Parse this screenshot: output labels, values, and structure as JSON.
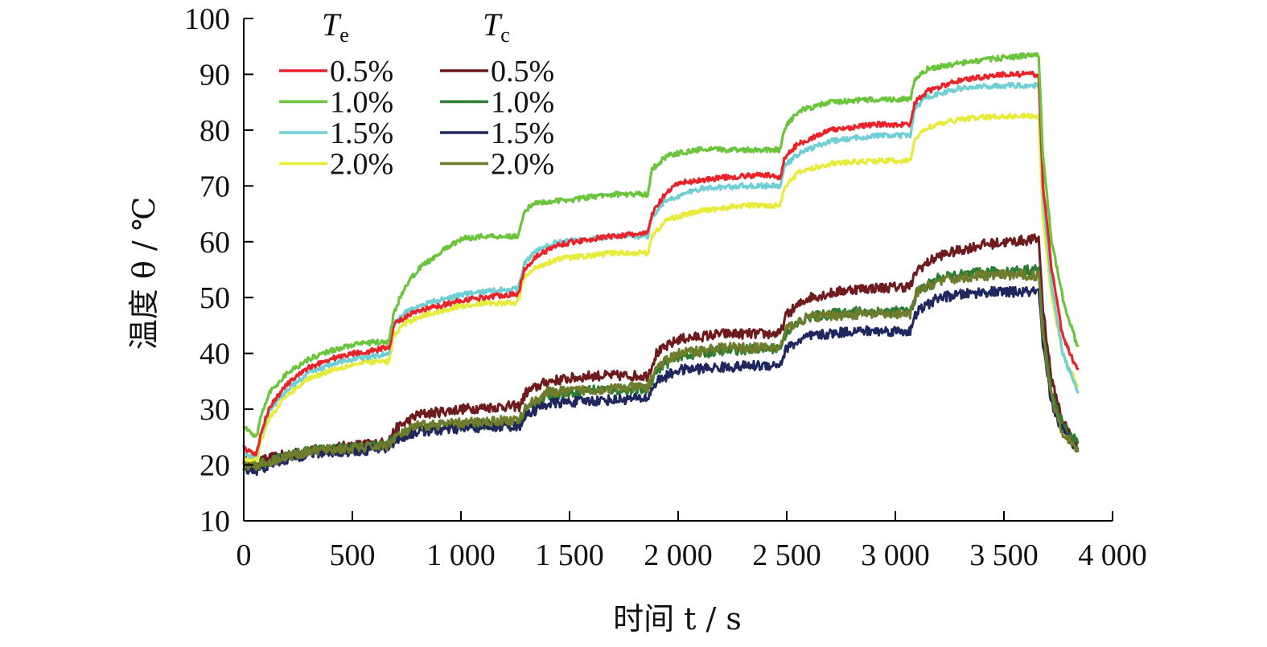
{
  "chart_data": {
    "type": "line",
    "xlabel": "时间 t / s",
    "ylabel": "温度 θ / ℃",
    "xlim": [
      0,
      4000
    ],
    "ylim": [
      10,
      100
    ],
    "x_ticks": [
      0,
      500,
      1000,
      1500,
      2000,
      2500,
      3000,
      3500,
      4000
    ],
    "x_tick_labels": [
      "0",
      "500",
      "1 000",
      "1 500",
      "2 000",
      "2 500",
      "3 000",
      "3 500",
      "4 000"
    ],
    "y_ticks": [
      10,
      20,
      30,
      40,
      50,
      60,
      70,
      80,
      90,
      100
    ],
    "y_tick_labels": [
      "10",
      "20",
      "30",
      "40",
      "50",
      "60",
      "70",
      "80",
      "90",
      "100"
    ],
    "grid": false,
    "legend": {
      "placement": "top-left",
      "groups": [
        {
          "head": "T",
          "sub": "e"
        },
        {
          "head": "T",
          "sub": "c"
        }
      ]
    },
    "series": [
      {
        "name": "0.5%",
        "group": "Te",
        "color": "#e8242a",
        "points": [
          [
            0,
            23
          ],
          [
            30,
            22.5
          ],
          [
            60,
            22
          ],
          [
            80,
            26
          ],
          [
            120,
            30.5
          ],
          [
            200,
            34.5
          ],
          [
            300,
            37.5
          ],
          [
            400,
            39
          ],
          [
            500,
            40
          ],
          [
            600,
            40.5
          ],
          [
            650,
            41
          ],
          [
            670,
            41
          ],
          [
            690,
            45
          ],
          [
            720,
            46
          ],
          [
            800,
            47.5
          ],
          [
            900,
            48.5
          ],
          [
            1000,
            49.5
          ],
          [
            1100,
            50
          ],
          [
            1200,
            50.5
          ],
          [
            1260,
            50.5
          ],
          [
            1270,
            51.5
          ],
          [
            1290,
            55
          ],
          [
            1350,
            57.5
          ],
          [
            1450,
            59.5
          ],
          [
            1600,
            60.5
          ],
          [
            1700,
            61
          ],
          [
            1860,
            61.5
          ],
          [
            1880,
            65
          ],
          [
            1930,
            68
          ],
          [
            2000,
            70.5
          ],
          [
            2200,
            71.5
          ],
          [
            2400,
            72
          ],
          [
            2470,
            71.5
          ],
          [
            2490,
            75
          ],
          [
            2550,
            77.5
          ],
          [
            2700,
            80
          ],
          [
            2900,
            81
          ],
          [
            3070,
            81
          ],
          [
            3090,
            85
          ],
          [
            3150,
            87
          ],
          [
            3300,
            89
          ],
          [
            3500,
            90
          ],
          [
            3660,
            90
          ],
          [
            3680,
            70
          ],
          [
            3720,
            55
          ],
          [
            3770,
            43
          ],
          [
            3840,
            37
          ]
        ]
      },
      {
        "name": "1.0%",
        "group": "Te",
        "color": "#6ac43c",
        "points": [
          [
            0,
            27
          ],
          [
            30,
            26
          ],
          [
            60,
            25
          ],
          [
            80,
            29
          ],
          [
            120,
            33
          ],
          [
            200,
            36.5
          ],
          [
            300,
            39
          ],
          [
            400,
            40.5
          ],
          [
            500,
            41.5
          ],
          [
            600,
            42
          ],
          [
            670,
            42
          ],
          [
            690,
            47
          ],
          [
            730,
            51
          ],
          [
            800,
            55
          ],
          [
            900,
            58
          ],
          [
            1000,
            60.5
          ],
          [
            1100,
            61
          ],
          [
            1200,
            61
          ],
          [
            1260,
            61
          ],
          [
            1270,
            62
          ],
          [
            1290,
            65.5
          ],
          [
            1350,
            67
          ],
          [
            1500,
            67.5
          ],
          [
            1700,
            68.5
          ],
          [
            1860,
            68.5
          ],
          [
            1880,
            73
          ],
          [
            1950,
            75.5
          ],
          [
            2100,
            76.5
          ],
          [
            2300,
            76.5
          ],
          [
            2470,
            76.5
          ],
          [
            2490,
            80.5
          ],
          [
            2560,
            83.5
          ],
          [
            2700,
            85
          ],
          [
            2900,
            85.5
          ],
          [
            3070,
            85.5
          ],
          [
            3090,
            89
          ],
          [
            3150,
            91
          ],
          [
            3300,
            92
          ],
          [
            3500,
            93
          ],
          [
            3660,
            93.5
          ],
          [
            3680,
            75
          ],
          [
            3720,
            60
          ],
          [
            3770,
            50
          ],
          [
            3840,
            41
          ]
        ]
      },
      {
        "name": "1.5%",
        "group": "Te",
        "color": "#6fcfd3",
        "points": [
          [
            0,
            22
          ],
          [
            30,
            21.5
          ],
          [
            60,
            21.5
          ],
          [
            80,
            25.5
          ],
          [
            120,
            30
          ],
          [
            200,
            33.5
          ],
          [
            300,
            36.5
          ],
          [
            400,
            38
          ],
          [
            500,
            39
          ],
          [
            600,
            39.5
          ],
          [
            670,
            40
          ],
          [
            690,
            45
          ],
          [
            730,
            47
          ],
          [
            800,
            48.5
          ],
          [
            900,
            49.5
          ],
          [
            1000,
            50.5
          ],
          [
            1100,
            51
          ],
          [
            1200,
            51.5
          ],
          [
            1260,
            51.5
          ],
          [
            1270,
            53
          ],
          [
            1290,
            56
          ],
          [
            1350,
            58.5
          ],
          [
            1450,
            60
          ],
          [
            1600,
            60.5
          ],
          [
            1700,
            61
          ],
          [
            1860,
            61
          ],
          [
            1880,
            64.5
          ],
          [
            1950,
            67.5
          ],
          [
            2100,
            69.5
          ],
          [
            2300,
            70
          ],
          [
            2470,
            70
          ],
          [
            2490,
            73.5
          ],
          [
            2560,
            76
          ],
          [
            2700,
            78
          ],
          [
            2900,
            79
          ],
          [
            3070,
            79
          ],
          [
            3090,
            84
          ],
          [
            3150,
            86
          ],
          [
            3300,
            87.5
          ],
          [
            3500,
            88
          ],
          [
            3660,
            88
          ],
          [
            3680,
            68
          ],
          [
            3720,
            52
          ],
          [
            3770,
            40
          ],
          [
            3840,
            33
          ]
        ]
      },
      {
        "name": "2.0%",
        "group": "Te",
        "color": "#e7eb3a",
        "points": [
          [
            0,
            21
          ],
          [
            30,
            21
          ],
          [
            60,
            21
          ],
          [
            80,
            24.5
          ],
          [
            120,
            28.5
          ],
          [
            200,
            32.5
          ],
          [
            300,
            35.5
          ],
          [
            400,
            37
          ],
          [
            500,
            38
          ],
          [
            600,
            38.5
          ],
          [
            670,
            38.5
          ],
          [
            690,
            43
          ],
          [
            730,
            45
          ],
          [
            800,
            46.5
          ],
          [
            900,
            47.5
          ],
          [
            1000,
            48.5
          ],
          [
            1100,
            49
          ],
          [
            1200,
            49
          ],
          [
            1260,
            49
          ],
          [
            1270,
            50.5
          ],
          [
            1290,
            53.5
          ],
          [
            1350,
            55.5
          ],
          [
            1450,
            57
          ],
          [
            1600,
            57.5
          ],
          [
            1700,
            58
          ],
          [
            1860,
            58
          ],
          [
            1880,
            61
          ],
          [
            1950,
            64
          ],
          [
            2100,
            65.5
          ],
          [
            2300,
            66.5
          ],
          [
            2470,
            66.5
          ],
          [
            2490,
            70
          ],
          [
            2560,
            72.5
          ],
          [
            2700,
            74
          ],
          [
            2900,
            74.5
          ],
          [
            3070,
            74.5
          ],
          [
            3090,
            78.5
          ],
          [
            3150,
            80.5
          ],
          [
            3300,
            82
          ],
          [
            3500,
            82.5
          ],
          [
            3660,
            82.5
          ],
          [
            3680,
            64
          ],
          [
            3720,
            50
          ],
          [
            3770,
            40
          ],
          [
            3840,
            34
          ]
        ]
      },
      {
        "name": "0.5%",
        "group": "Tc",
        "color": "#6e1b1e",
        "points": [
          [
            0,
            21
          ],
          [
            60,
            20.5
          ],
          [
            150,
            21.5
          ],
          [
            300,
            22.5
          ],
          [
            500,
            23.5
          ],
          [
            660,
            24
          ],
          [
            700,
            26.5
          ],
          [
            800,
            29
          ],
          [
            1000,
            30
          ],
          [
            1200,
            30.5
          ],
          [
            1270,
            30.5
          ],
          [
            1300,
            33
          ],
          [
            1400,
            35
          ],
          [
            1600,
            36
          ],
          [
            1860,
            36
          ],
          [
            1900,
            40
          ],
          [
            2000,
            42.5
          ],
          [
            2200,
            43.5
          ],
          [
            2470,
            43.5
          ],
          [
            2500,
            47
          ],
          [
            2600,
            50
          ],
          [
            2800,
            51.5
          ],
          [
            3070,
            52
          ],
          [
            3100,
            55
          ],
          [
            3200,
            57.5
          ],
          [
            3400,
            59.5
          ],
          [
            3660,
            60.5
          ],
          [
            3680,
            48
          ],
          [
            3720,
            35
          ],
          [
            3770,
            28
          ],
          [
            3840,
            23
          ]
        ]
      },
      {
        "name": "1.0%",
        "group": "Tc",
        "color": "#2a7d34",
        "points": [
          [
            0,
            20
          ],
          [
            60,
            20
          ],
          [
            150,
            21
          ],
          [
            300,
            22.5
          ],
          [
            500,
            23
          ],
          [
            660,
            23.5
          ],
          [
            700,
            25
          ],
          [
            800,
            26.5
          ],
          [
            1000,
            27
          ],
          [
            1200,
            27.5
          ],
          [
            1270,
            27.5
          ],
          [
            1300,
            30
          ],
          [
            1400,
            32.5
          ],
          [
            1600,
            33.5
          ],
          [
            1860,
            33.5
          ],
          [
            1900,
            37
          ],
          [
            2000,
            39.5
          ],
          [
            2200,
            40.5
          ],
          [
            2470,
            41
          ],
          [
            2500,
            44
          ],
          [
            2600,
            46.5
          ],
          [
            2800,
            47.5
          ],
          [
            3070,
            47.5
          ],
          [
            3100,
            51
          ],
          [
            3200,
            53.5
          ],
          [
            3400,
            54.5
          ],
          [
            3660,
            55
          ],
          [
            3680,
            44
          ],
          [
            3720,
            33
          ],
          [
            3770,
            27
          ],
          [
            3840,
            24
          ]
        ]
      },
      {
        "name": "1.5%",
        "group": "Tc",
        "color": "#20275e",
        "points": [
          [
            0,
            19.5
          ],
          [
            60,
            19
          ],
          [
            150,
            20.5
          ],
          [
            300,
            22
          ],
          [
            500,
            22.5
          ],
          [
            660,
            23
          ],
          [
            700,
            24.5
          ],
          [
            800,
            26
          ],
          [
            1000,
            26.5
          ],
          [
            1200,
            27
          ],
          [
            1270,
            27
          ],
          [
            1300,
            29
          ],
          [
            1400,
            31
          ],
          [
            1600,
            31.5
          ],
          [
            1860,
            32
          ],
          [
            1900,
            35
          ],
          [
            2000,
            37
          ],
          [
            2200,
            37.5
          ],
          [
            2470,
            38
          ],
          [
            2500,
            41
          ],
          [
            2600,
            43
          ],
          [
            2800,
            44
          ],
          [
            3070,
            44
          ],
          [
            3100,
            47.5
          ],
          [
            3200,
            50
          ],
          [
            3400,
            51
          ],
          [
            3660,
            51
          ],
          [
            3680,
            41
          ],
          [
            3720,
            31
          ],
          [
            3770,
            26
          ],
          [
            3840,
            23
          ]
        ]
      },
      {
        "name": "2.0%",
        "group": "Tc",
        "color": "#6e7c2c",
        "points": [
          [
            0,
            20
          ],
          [
            60,
            20
          ],
          [
            150,
            21
          ],
          [
            300,
            22.5
          ],
          [
            500,
            23
          ],
          [
            660,
            23.5
          ],
          [
            700,
            25
          ],
          [
            800,
            27
          ],
          [
            1000,
            27.5
          ],
          [
            1200,
            28
          ],
          [
            1270,
            28
          ],
          [
            1300,
            30.5
          ],
          [
            1400,
            33
          ],
          [
            1600,
            33.5
          ],
          [
            1860,
            34
          ],
          [
            1900,
            37.5
          ],
          [
            2000,
            40
          ],
          [
            2200,
            41
          ],
          [
            2470,
            41
          ],
          [
            2500,
            44.5
          ],
          [
            2600,
            46.5
          ],
          [
            2800,
            47
          ],
          [
            3070,
            47
          ],
          [
            3100,
            51
          ],
          [
            3200,
            53
          ],
          [
            3400,
            54
          ],
          [
            3660,
            54
          ],
          [
            3680,
            43
          ],
          [
            3720,
            32
          ],
          [
            3770,
            26
          ],
          [
            3840,
            22.5
          ]
        ]
      }
    ]
  }
}
